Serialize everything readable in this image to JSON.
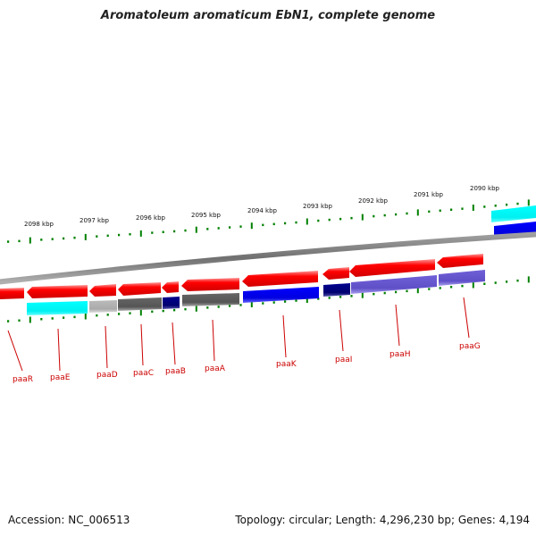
{
  "title": "Aromatoleum aromaticum EbN1, complete genome",
  "footer": {
    "accession": "Accession: NC_006513",
    "summary": "Topology: circular; Length: 4,296,230 bp; Genes: 4,194"
  },
  "scale": {
    "labels": [
      "2098 kbp",
      "2097 kbp",
      "2096 kbp",
      "2095 kbp",
      "2094 kbp",
      "2093 kbp",
      "2092 kbp",
      "2091 kbp",
      "2090 kbp"
    ]
  },
  "genes": [
    {
      "name": "paaR"
    },
    {
      "name": "paaE"
    },
    {
      "name": "paaD"
    },
    {
      "name": "paaC"
    },
    {
      "name": "paaB"
    },
    {
      "name": "paaA"
    },
    {
      "name": "paaK"
    },
    {
      "name": "paaI"
    },
    {
      "name": "paaH"
    },
    {
      "name": "paaG"
    }
  ],
  "colors": {
    "cds": "#ff0000",
    "backbone": "#808080",
    "ticks": "#008000",
    "gene_label": "#cc0000",
    "cyan": "#00ffff",
    "blue": "#0000ee",
    "navy": "#000080",
    "dark_gray": "#5a5a5a",
    "light_gray": "#b4b4b4",
    "slate_blue": "#6a5acd"
  }
}
